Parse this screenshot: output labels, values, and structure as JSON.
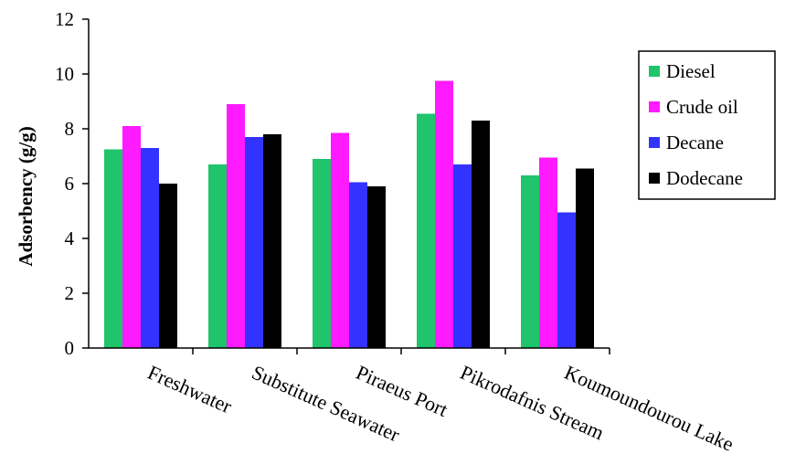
{
  "chart_data": {
    "type": "bar",
    "title": "",
    "xlabel": "",
    "ylabel": "Adsorbency (g/g)",
    "ylim": [
      0,
      12
    ],
    "yticks": [
      "0",
      "2",
      "4",
      "6",
      "8",
      "10",
      "12"
    ],
    "categories": [
      "Freshwater",
      "Substitute Seawater",
      "Piraeus Port",
      "Pikrodafnis Stream",
      "Koumoundourou Lake"
    ],
    "series": [
      {
        "name": "Diesel",
        "color": "#1fc46b",
        "values": [
          7.25,
          6.7,
          6.9,
          8.55,
          6.3
        ]
      },
      {
        "name": "Crude oil",
        "color": "#ff1aff",
        "values": [
          8.1,
          8.9,
          7.85,
          9.75,
          6.95
        ]
      },
      {
        "name": "Decane",
        "color": "#3333ff",
        "values": [
          7.3,
          7.7,
          6.05,
          6.7,
          4.95
        ]
      },
      {
        "name": "Dodecane",
        "color": "#000000",
        "values": [
          6.0,
          7.8,
          5.9,
          8.3,
          6.55
        ]
      }
    ],
    "grid": false,
    "legend": "right"
  }
}
